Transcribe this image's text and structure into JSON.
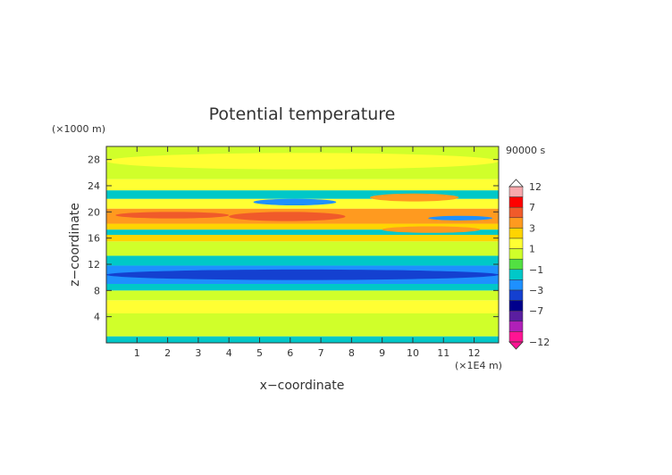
{
  "chart_data": {
    "type": "heatmap",
    "title": "Potential temperature",
    "xlabel": "x−coordinate",
    "ylabel": "z−coordinate",
    "x_unit": "(×1E4 m)",
    "y_unit": "(×1000 m)",
    "time_label": "90000 s",
    "xlim": [
      0,
      12.8
    ],
    "ylim": [
      0,
      30
    ],
    "x_ticks": [
      "1",
      "2",
      "3",
      "4",
      "5",
      "6",
      "7",
      "8",
      "9",
      "10",
      "11",
      "12"
    ],
    "y_ticks": [
      "4",
      "8",
      "12",
      "16",
      "20",
      "24",
      "28"
    ],
    "colorbar": {
      "ticks": [
        "12",
        "7",
        "3",
        "1",
        "−1",
        "−3",
        "−7",
        "−12"
      ],
      "levels": [
        {
          "value": 12,
          "color": "#f7a8ac"
        },
        {
          "value": 7,
          "color": "#ff0000"
        },
        {
          "value": 5,
          "color": "#f05a2a"
        },
        {
          "value": 3,
          "color": "#ff9a1f"
        },
        {
          "value": 2,
          "color": "#ffd400"
        },
        {
          "value": 1,
          "color": "#ffff33"
        },
        {
          "value": 0,
          "color": "#d0ff2a"
        },
        {
          "value": -1,
          "color": "#52e042"
        },
        {
          "value": -2,
          "color": "#00c8c8"
        },
        {
          "value": -3,
          "color": "#1e90ff"
        },
        {
          "value": -5,
          "color": "#1440d0"
        },
        {
          "value": -7,
          "color": "#00008c"
        },
        {
          "value": -9,
          "color": "#5a1ea0"
        },
        {
          "value": -11,
          "color": "#b020b8"
        },
        {
          "value": -12,
          "color": "#ff1493"
        }
      ]
    },
    "bands": [
      {
        "z": [
          0,
          1.0
        ],
        "value": -2,
        "color": "#00c8c8"
      },
      {
        "z": [
          1.0,
          4.5
        ],
        "value": 0,
        "color": "#d0ff2a"
      },
      {
        "z": [
          4.5,
          6.5
        ],
        "value": 1,
        "color": "#ffff33"
      },
      {
        "z": [
          6.5,
          8.0
        ],
        "value": 0,
        "color": "#d0ff2a"
      },
      {
        "z": [
          8.0,
          9.0
        ],
        "value": -2,
        "color": "#00c8c8"
      },
      {
        "z": [
          9.0,
          11.8
        ],
        "value": -3,
        "color": "#1e90ff"
      },
      {
        "z": [
          11.8,
          13.3
        ],
        "value": -2,
        "color": "#00c8c8"
      },
      {
        "z": [
          13.3,
          15.5
        ],
        "value": 0,
        "color": "#d0ff2a"
      },
      {
        "z": [
          15.5,
          16.5
        ],
        "value": 2,
        "color": "#ffd400"
      },
      {
        "z": [
          16.5,
          17.3
        ],
        "value": -2,
        "color": "#00c8c8"
      },
      {
        "z": [
          17.3,
          18.2
        ],
        "value": 2,
        "color": "#ffd400"
      },
      {
        "z": [
          18.2,
          20.5
        ],
        "value": 3,
        "color": "#ff9a1f"
      },
      {
        "z": [
          20.5,
          22.0
        ],
        "value": 1,
        "color": "#ffff33"
      },
      {
        "z": [
          22.0,
          23.3
        ],
        "value": -2,
        "color": "#00c8c8"
      },
      {
        "z": [
          23.3,
          25.0
        ],
        "value": 1,
        "color": "#ffff33"
      },
      {
        "z": [
          25.0,
          30.0
        ],
        "value": 0,
        "color": "#d0ff2a"
      }
    ],
    "features": [
      {
        "x": [
          0.0,
          12.8
        ],
        "z": [
          9.6,
          11.2
        ],
        "value": -5,
        "color": "#1440d0"
      },
      {
        "x": [
          0.3,
          4.0
        ],
        "z": [
          19.0,
          20.0
        ],
        "value": 5,
        "color": "#f05a2a"
      },
      {
        "x": [
          4.0,
          7.8
        ],
        "z": [
          18.6,
          20.0
        ],
        "value": 5,
        "color": "#f05a2a"
      },
      {
        "x": [
          9.0,
          12.2
        ],
        "z": [
          16.8,
          17.8
        ],
        "value": 3,
        "color": "#ff9a1f"
      },
      {
        "x": [
          8.6,
          11.5
        ],
        "z": [
          21.6,
          22.8
        ],
        "value": 3,
        "color": "#ff9a1f"
      },
      {
        "x": [
          4.8,
          7.5
        ],
        "z": [
          21.0,
          22.0
        ],
        "value": -3,
        "color": "#1e90ff"
      },
      {
        "x": [
          10.5,
          12.6
        ],
        "z": [
          18.7,
          19.4
        ],
        "value": -3,
        "color": "#1e90ff"
      },
      {
        "x": [
          0.0,
          12.8
        ],
        "z": [
          26.5,
          29.0
        ],
        "value": 1,
        "color": "#ffff33"
      }
    ]
  }
}
